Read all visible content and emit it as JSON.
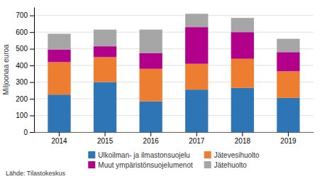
{
  "chart_data": {
    "type": "bar",
    "stacked": true,
    "categories": [
      "2014",
      "2015",
      "2016",
      "2017",
      "2018",
      "2019"
    ],
    "series": [
      {
        "name": "Ulkoilman- ja ilmastonsuojelu",
        "color": "#2e75b6",
        "values": [
          225,
          300,
          185,
          255,
          265,
          205
        ]
      },
      {
        "name": "Jätevesihuolto",
        "color": "#ed7d31",
        "values": [
          195,
          150,
          195,
          155,
          175,
          160
        ]
      },
      {
        "name": "Muut ympäristönsuojelumenot",
        "color": "#b3008a",
        "values": [
          75,
          65,
          95,
          220,
          160,
          115
        ]
      },
      {
        "name": "Jätehuolto",
        "color": "#a6a6a6",
        "values": [
          95,
          100,
          140,
          80,
          85,
          80
        ]
      }
    ],
    "ylabel": "Miljoonaa euroa",
    "ylim": [
      0,
      750
    ],
    "yticks": [
      0,
      100,
      200,
      300,
      400,
      500,
      600,
      700
    ],
    "grid": true,
    "legend": "bottom",
    "annotations": [
      "Lähde: Tilastokeskus"
    ]
  }
}
